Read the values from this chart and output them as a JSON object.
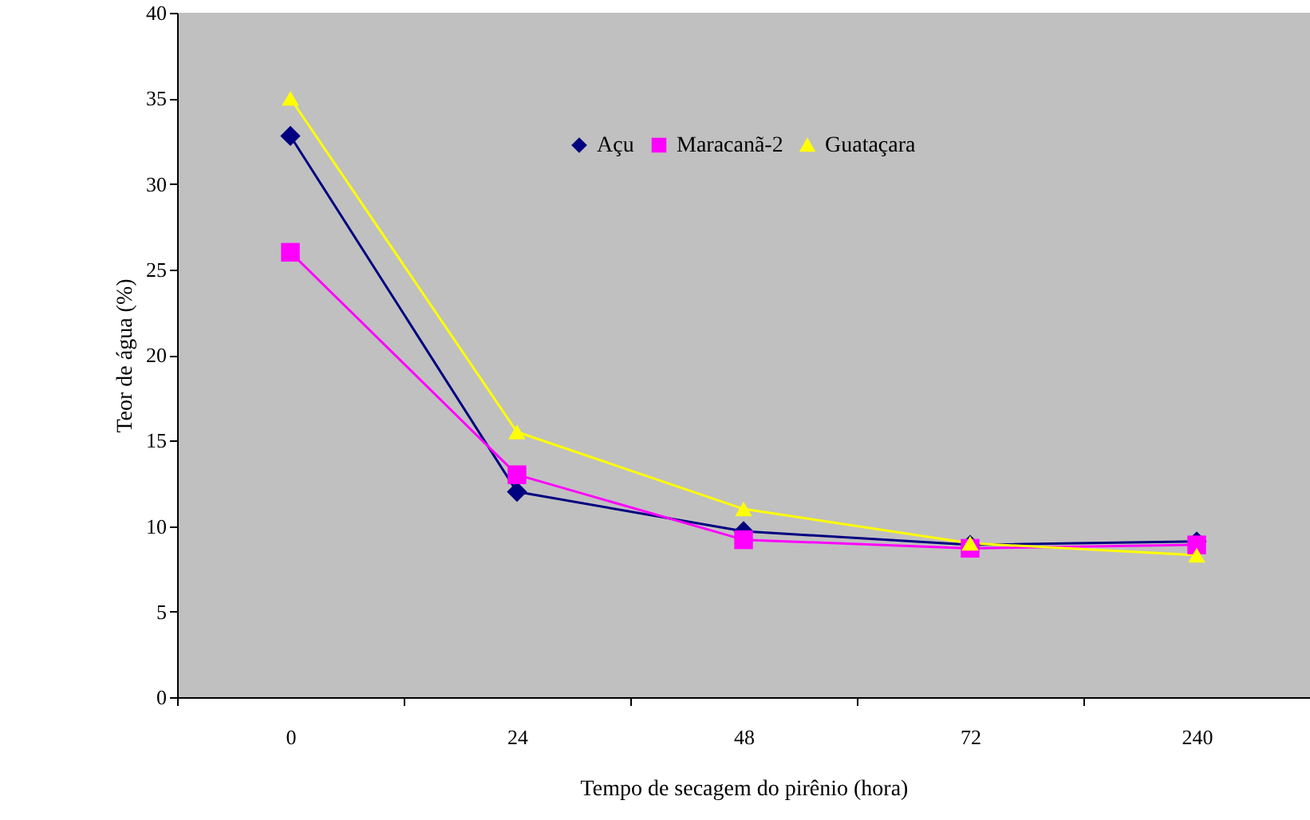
{
  "chart_data": {
    "type": "line",
    "xlabel": "Tempo de secagem do pirênio (hora)",
    "ylabel": "Teor de água (%)",
    "categories": [
      "0",
      "24",
      "48",
      "72",
      "240"
    ],
    "series": [
      {
        "name": "Açu",
        "color": "#000080",
        "marker": "diamond",
        "values": [
          32.8,
          12.0,
          9.7,
          8.9,
          9.1
        ]
      },
      {
        "name": "Maracanã-2",
        "color": "#ff00ff",
        "marker": "square",
        "values": [
          26.0,
          13.0,
          9.2,
          8.7,
          8.9
        ]
      },
      {
        "name": "Guataçara",
        "color": "#ffff00",
        "marker": "triangle",
        "values": [
          35.0,
          15.5,
          11.0,
          9.0,
          8.3
        ]
      }
    ],
    "ylim": [
      0,
      40
    ],
    "yticks": [
      0,
      5,
      10,
      15,
      20,
      25,
      30,
      35,
      40
    ],
    "grid": false,
    "legend": "top right",
    "line_style": "solid"
  }
}
